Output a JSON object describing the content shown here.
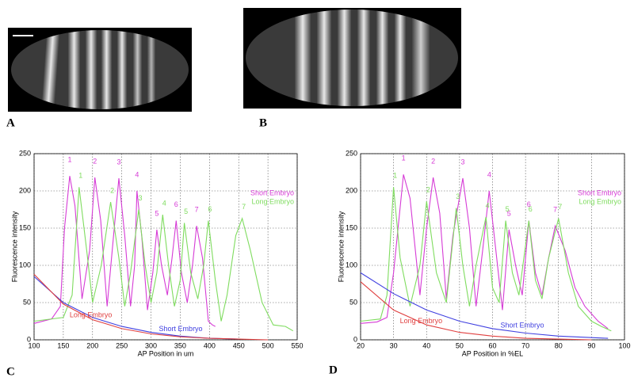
{
  "panel_labels": [
    "A",
    "B",
    "C",
    "D"
  ],
  "chart_data": [
    {
      "type": "line",
      "xlabel": "AP Position in um",
      "ylabel": "Fluorescence intensity",
      "xlim": [
        100,
        550
      ],
      "xticks": [
        100,
        150,
        200,
        250,
        300,
        350,
        400,
        450,
        500,
        550
      ],
      "ylim": [
        0,
        250
      ],
      "yticks": [
        0,
        50,
        100,
        150,
        200,
        250
      ],
      "grid": true,
      "legend": "upper right",
      "series": [
        {
          "name": "Short Embryo",
          "color": "#d63bd6",
          "legend": true,
          "peak_labels": [
            "1",
            "2",
            "3",
            "4",
            "5",
            "6",
            "7"
          ],
          "x": [
            100,
            130,
            145,
            152,
            161,
            170,
            182,
            195,
            204,
            214,
            225,
            236,
            245,
            255,
            265,
            272,
            276,
            284,
            294,
            303,
            310,
            318,
            328,
            336,
            343,
            352,
            362,
            371,
            378,
            388,
            398,
            405,
            410
          ],
          "values": [
            22,
            28,
            45,
            150,
            220,
            180,
            55,
            120,
            218,
            160,
            45,
            140,
            217,
            140,
            45,
            100,
            200,
            140,
            40,
            90,
            148,
            100,
            60,
            110,
            160,
            90,
            50,
            100,
            153,
            110,
            25,
            20,
            18
          ]
        },
        {
          "name": "Long Embryo",
          "color": "#7fdc5f",
          "legend": true,
          "peak_labels": [
            "1",
            "2",
            "3",
            "4",
            "5",
            "6",
            "7"
          ],
          "x": [
            100,
            150,
            165,
            177,
            190,
            200,
            215,
            231,
            245,
            255,
            265,
            279,
            290,
            300,
            310,
            320,
            330,
            340,
            350,
            357,
            368,
            380,
            390,
            398,
            410,
            420,
            430,
            445,
            456,
            470,
            490,
            509,
            530,
            543
          ],
          "values": [
            25,
            30,
            60,
            205,
            120,
            50,
            100,
            185,
            110,
            45,
            90,
            175,
            100,
            50,
            90,
            168,
            100,
            45,
            80,
            157,
            90,
            55,
            100,
            160,
            80,
            25,
            60,
            140,
            163,
            120,
            50,
            20,
            18,
            12
          ]
        },
        {
          "name": "Short Embryo",
          "color": "#4040e0",
          "legend": false,
          "x": [
            100,
            150,
            200,
            250,
            300,
            350,
            400,
            450
          ],
          "values": [
            85,
            50,
            30,
            18,
            10,
            5,
            2,
            1
          ]
        },
        {
          "name": "Long Embryo",
          "color": "#e04040",
          "legend": false,
          "x": [
            100,
            150,
            200,
            250,
            300,
            350,
            400,
            450,
            500
          ],
          "values": [
            88,
            48,
            27,
            15,
            8,
            4,
            2,
            1,
            0
          ]
        }
      ]
    },
    {
      "type": "line",
      "xlabel": "AP Position in %EL",
      "ylabel": "Fluorescence intensity",
      "xlim": [
        20,
        100
      ],
      "xticks": [
        20,
        30,
        40,
        50,
        60,
        70,
        80,
        90,
        100
      ],
      "ylim": [
        0,
        250
      ],
      "yticks": [
        0,
        50,
        100,
        150,
        200,
        250
      ],
      "grid": true,
      "legend": "upper right",
      "series": [
        {
          "name": "Short Embryo",
          "color": "#d63bd6",
          "legend": true,
          "peak_labels": [
            "1",
            "2",
            "3",
            "4",
            "5",
            "6",
            "7"
          ],
          "x": [
            20,
            25,
            28,
            30,
            33,
            35,
            38,
            40,
            42,
            44,
            46,
            48,
            51,
            53,
            55,
            57,
            59,
            61,
            63,
            65,
            67,
            69,
            71,
            73,
            75,
            77,
            79,
            82,
            85,
            88,
            92,
            95
          ],
          "values": [
            22,
            24,
            30,
            90,
            222,
            190,
            60,
            150,
            218,
            170,
            55,
            140,
            217,
            150,
            45,
            120,
            200,
            120,
            40,
            148,
            100,
            60,
            160,
            90,
            60,
            110,
            153,
            120,
            70,
            45,
            25,
            15
          ]
        },
        {
          "name": "Long Embryo",
          "color": "#7fdc5f",
          "legend": true,
          "peak_labels": [
            "1",
            "2",
            "3",
            "4",
            "5",
            "6",
            "7"
          ],
          "x": [
            20,
            26,
            28,
            30,
            32,
            35,
            38,
            40,
            43,
            46,
            49,
            51,
            53,
            55,
            58,
            60,
            62,
            64,
            66,
            68,
            71,
            73,
            75,
            77,
            80,
            83,
            86,
            90,
            93,
            96
          ],
          "values": [
            25,
            28,
            60,
            205,
            110,
            45,
            100,
            186,
            90,
            50,
            177,
            100,
            45,
            100,
            165,
            70,
            50,
            160,
            90,
            60,
            160,
            80,
            55,
            110,
            163,
            90,
            45,
            25,
            18,
            12
          ]
        },
        {
          "name": "Short Embryo",
          "color": "#4040e0",
          "legend": false,
          "x": [
            20,
            30,
            40,
            50,
            60,
            70,
            80,
            90,
            95
          ],
          "values": [
            90,
            62,
            40,
            25,
            15,
            9,
            5,
            3,
            2
          ]
        },
        {
          "name": "Long Embryo",
          "color": "#e04040",
          "legend": false,
          "x": [
            20,
            30,
            40,
            50,
            60,
            70,
            80,
            90
          ],
          "values": [
            78,
            40,
            20,
            10,
            5,
            2,
            1,
            0
          ]
        }
      ]
    }
  ]
}
